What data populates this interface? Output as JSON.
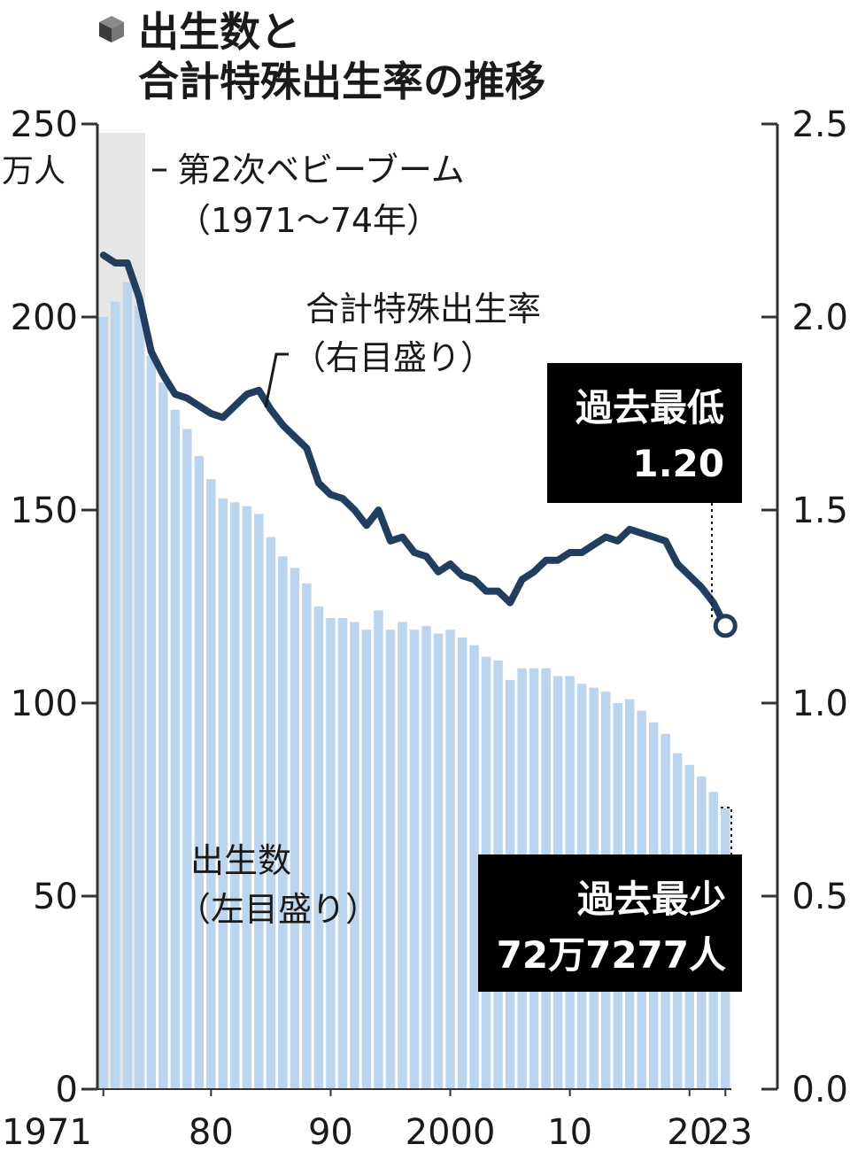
{
  "colors": {
    "bar": "#bcd5ee",
    "line": "#223e5e",
    "boom_band": "#e6e6e6",
    "axis": "#333333",
    "callout_bg": "#000000",
    "callout_text": "#ffffff"
  },
  "header": {
    "icon": "cube-icon",
    "title_line1": "出生数と",
    "title_line2": "合計特殊出生率の推移"
  },
  "chart_data": {
    "type": "bar",
    "x": [
      1971,
      1972,
      1973,
      1974,
      1975,
      1976,
      1977,
      1978,
      1979,
      1980,
      1981,
      1982,
      1983,
      1984,
      1985,
      1986,
      1987,
      1988,
      1989,
      1990,
      1991,
      1992,
      1993,
      1994,
      1995,
      1996,
      1997,
      1998,
      1999,
      2000,
      2001,
      2002,
      2003,
      2004,
      2005,
      2006,
      2007,
      2008,
      2009,
      2010,
      2011,
      2012,
      2013,
      2014,
      2015,
      2016,
      2017,
      2018,
      2019,
      2020,
      2021,
      2022,
      2023
    ],
    "series": [
      {
        "name": "出生数",
        "name_note": "（左目盛り）",
        "type": "bar",
        "axis": "left",
        "values": [
          200,
          204,
          209,
          203,
          190,
          183,
          176,
          171,
          164,
          158,
          153,
          152,
          151,
          149,
          143,
          138,
          135,
          131,
          125,
          122,
          122,
          121,
          119,
          124,
          119,
          121,
          119,
          120,
          118,
          119,
          117,
          115,
          112,
          111,
          106,
          109,
          109,
          109,
          107,
          107,
          105,
          104,
          103,
          100,
          101,
          98,
          95,
          92,
          87,
          84,
          81,
          77,
          72.7277
        ]
      },
      {
        "name": "合計特殊出生率",
        "name_note": "（右目盛り）",
        "type": "line",
        "axis": "right",
        "values": [
          2.16,
          2.14,
          2.14,
          2.05,
          1.91,
          1.85,
          1.8,
          1.79,
          1.77,
          1.75,
          1.74,
          1.77,
          1.8,
          1.81,
          1.76,
          1.72,
          1.69,
          1.66,
          1.57,
          1.54,
          1.53,
          1.5,
          1.46,
          1.5,
          1.42,
          1.43,
          1.39,
          1.38,
          1.34,
          1.36,
          1.33,
          1.32,
          1.29,
          1.29,
          1.26,
          1.32,
          1.34,
          1.37,
          1.37,
          1.39,
          1.39,
          1.41,
          1.43,
          1.42,
          1.45,
          1.44,
          1.43,
          1.42,
          1.36,
          1.33,
          1.3,
          1.26,
          1.2
        ]
      }
    ],
    "y_left": {
      "min": 0,
      "max": 250,
      "ticks": [
        "0",
        "50",
        "100",
        "150",
        "200",
        "250"
      ],
      "unit": "万人"
    },
    "y_right": {
      "min": 0,
      "max": 2.5,
      "ticks": [
        "0.0",
        "0.5",
        "1.0",
        "1.5",
        "2.0",
        "2.5"
      ]
    },
    "x_tick_labels": [
      {
        "year": 1971,
        "label": "1971"
      },
      {
        "year": 1980,
        "label": "80"
      },
      {
        "year": 1990,
        "label": "90"
      },
      {
        "year": 2000,
        "label": "2000"
      },
      {
        "year": 2010,
        "label": "10"
      },
      {
        "year": 2020,
        "label": "20"
      },
      {
        "year": 2023,
        "label": "23"
      }
    ],
    "highlight_period": {
      "start": 1971,
      "end": 1974,
      "label": "第2次ベビーブーム",
      "sub": "（1971〜74年）"
    },
    "callouts": {
      "rate_low": {
        "line1": "過去最低",
        "line2": "1.20"
      },
      "birth_low": {
        "line1": "過去最少",
        "line2": "72万7277人"
      }
    },
    "grid": false,
    "legend": "none"
  }
}
